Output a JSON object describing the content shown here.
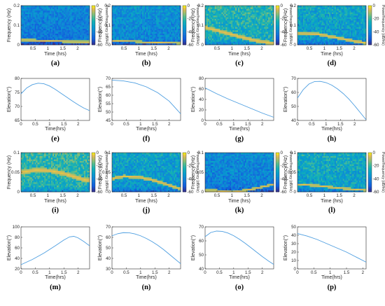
{
  "chart_data": [
    {
      "type": "heatmap",
      "panel_label": "(a)",
      "xlabel": "Time (hrs)",
      "ylabel": "Frequency (Hz)",
      "colorbar_label": "Power/frequency (dB/Hz)",
      "colorbar_ticks": [
        "0",
        "-20",
        "-40",
        "-60"
      ],
      "yticks": [
        "0.2",
        "0.1",
        "0"
      ],
      "xticks": [
        "0.5",
        "1",
        "1.5",
        "2"
      ],
      "clim": [
        -60,
        0
      ],
      "xlim": [
        0.1,
        2.4
      ],
      "ylim": [
        0,
        0.2
      ],
      "track": [
        [
          0.1,
          0.026
        ],
        [
          1.0,
          0.021
        ],
        [
          2.0,
          0.016
        ],
        [
          2.3,
          0.015
        ]
      ],
      "track_width": 0.006,
      "base_db": -42,
      "noise_db": 8
    },
    {
      "type": "heatmap",
      "panel_label": "(b)",
      "xlabel": "Time (hrs)",
      "ylabel": "Frequency (Hz)",
      "colorbar_label": "Power/frequency (dB/Hz)",
      "colorbar_ticks": [
        "0",
        "-20",
        "-40",
        "-60"
      ],
      "yticks": [
        "0.2",
        "0.1",
        "0"
      ],
      "xticks": [
        "0.5",
        "1",
        "1.5",
        "2"
      ],
      "clim": [
        -60,
        0
      ],
      "xlim": [
        0.1,
        2.4
      ],
      "ylim": [
        0,
        0.2
      ],
      "track": [
        [
          0.1,
          0.022
        ],
        [
          0.8,
          0.018
        ],
        [
          1.5,
          0.013
        ],
        [
          2.3,
          0.009
        ]
      ],
      "track_width": 0.005,
      "base_db": -38,
      "noise_db": 9
    },
    {
      "type": "heatmap",
      "panel_label": "(c)",
      "xlabel": "Time (hrs)",
      "ylabel": "Frequency (Hz)",
      "colorbar_label": "Power/frequency (dB/Hz)",
      "colorbar_ticks": [
        "0",
        "-20",
        "-40",
        "-60"
      ],
      "yticks": [
        "0.2",
        "0.1",
        "0"
      ],
      "xticks": [
        "0.5",
        "1",
        "1.5",
        "2"
      ],
      "clim": [
        -60,
        0
      ],
      "xlim": [
        0.1,
        2.4
      ],
      "ylim": [
        0,
        0.2
      ],
      "track": [
        [
          0.1,
          0.09
        ],
        [
          0.6,
          0.07
        ],
        [
          1.2,
          0.045
        ],
        [
          1.8,
          0.022
        ],
        [
          2.3,
          0.01
        ]
      ],
      "track_width": 0.01,
      "base_db": -26,
      "noise_db": 10
    },
    {
      "type": "heatmap",
      "panel_label": "(d)",
      "xlabel": "Time (hrs)",
      "ylabel": "Frequency (Hz)",
      "colorbar_label": "Power/frequency (dB/Hz)",
      "colorbar_ticks": [
        "0",
        "-20",
        "-40",
        "-60"
      ],
      "yticks": [
        "0.2",
        "0.1",
        "0"
      ],
      "xticks": [
        "0.5",
        "1",
        "1.5",
        "2"
      ],
      "clim": [
        -60,
        0
      ],
      "xlim": [
        0.1,
        2.4
      ],
      "ylim": [
        0,
        0.2
      ],
      "track": [
        [
          0.1,
          0.06
        ],
        [
          0.8,
          0.055
        ],
        [
          1.5,
          0.035
        ],
        [
          2.0,
          0.02
        ],
        [
          2.3,
          0.012
        ]
      ],
      "track_width": 0.008,
      "base_db": -32,
      "noise_db": 10
    },
    {
      "type": "line",
      "panel_label": "(e)",
      "xlabel": "Time(hrs)",
      "ylabel": "Elevation(°)",
      "xlim": [
        0,
        2.4
      ],
      "ylim": [
        65,
        80
      ],
      "xticks": [
        "0",
        "0.5",
        "1",
        "1.5",
        "2"
      ],
      "yticks": [
        "65",
        "70",
        "75",
        "80"
      ],
      "x": [
        0,
        0.2,
        0.4,
        0.6,
        0.8,
        1.0,
        1.2,
        1.4,
        1.6,
        1.8,
        2.0,
        2.2,
        2.4
      ],
      "y": [
        74.5,
        76.6,
        77.8,
        78.3,
        78.1,
        77.3,
        76.1,
        74.7,
        73.3,
        71.9,
        70.6,
        69.4,
        68.5
      ]
    },
    {
      "type": "line",
      "panel_label": "(f)",
      "xlabel": "Time(hrs)",
      "ylabel": "Elevation(°)",
      "xlim": [
        0,
        2.4
      ],
      "ylim": [
        45,
        70
      ],
      "xticks": [
        "0",
        "0.5",
        "1",
        "1.5",
        "2"
      ],
      "yticks": [
        "45",
        "50",
        "55",
        "60",
        "65",
        "70"
      ],
      "x": [
        0,
        0.4,
        0.8,
        1.2,
        1.6,
        2.0,
        2.4
      ],
      "y": [
        69,
        68.5,
        67.3,
        65,
        61.5,
        56.5,
        49
      ]
    },
    {
      "type": "line",
      "panel_label": "(g)",
      "xlabel": "Time(hrs)",
      "ylabel": "Elevation(°)",
      "xlim": [
        0,
        2.4
      ],
      "ylim": [
        0,
        80
      ],
      "xticks": [
        "0",
        "0.5",
        "1",
        "1.5",
        "2"
      ],
      "yticks": [
        "0",
        "20",
        "40",
        "60",
        "80"
      ],
      "x": [
        0,
        0.4,
        0.8,
        1.2,
        1.6,
        2.0,
        2.4
      ],
      "y": [
        62,
        51,
        41,
        32,
        23,
        14,
        6
      ]
    },
    {
      "type": "line",
      "panel_label": "(h)",
      "xlabel": "Time(hrs)",
      "ylabel": "Elevation(°)",
      "xlim": [
        0,
        2.4
      ],
      "ylim": [
        40,
        70
      ],
      "xticks": [
        "0",
        "0.5",
        "1",
        "1.5",
        "2"
      ],
      "yticks": [
        "40",
        "50",
        "60",
        "70"
      ],
      "x": [
        0,
        0.2,
        0.4,
        0.6,
        0.8,
        1.0,
        1.2,
        1.4,
        1.6,
        1.8,
        2.0,
        2.2,
        2.4
      ],
      "y": [
        56,
        62,
        66,
        67.8,
        67.9,
        67,
        65.2,
        62.5,
        59.2,
        55.2,
        50.5,
        45.5,
        40.5
      ]
    },
    {
      "type": "heatmap",
      "panel_label": "(i)",
      "xlabel": "Time (hrs)",
      "ylabel": "Frequency (Hz)",
      "colorbar_label": "Power/frequency (dB/Hz)",
      "colorbar_ticks": [
        "0",
        "-20",
        "-40",
        "-60"
      ],
      "yticks": [
        "0.1",
        "0.05",
        "0"
      ],
      "xticks": [
        "0.5",
        "1",
        "1.5",
        "2"
      ],
      "clim": [
        -60,
        0
      ],
      "xlim": [
        0.1,
        2.4
      ],
      "ylim": [
        0,
        0.1
      ],
      "track": [
        [
          0.1,
          0.05
        ],
        [
          0.6,
          0.056
        ],
        [
          1.1,
          0.054
        ],
        [
          1.6,
          0.046
        ],
        [
          2.0,
          0.036
        ],
        [
          2.3,
          0.03
        ]
      ],
      "track_width": 0.006,
      "base_db": -24,
      "noise_db": 10
    },
    {
      "type": "heatmap",
      "panel_label": "(j)",
      "xlabel": "Time (hrs)",
      "ylabel": "Frequency (Hz)",
      "colorbar_label": "Power/frequency (dB/Hz)",
      "colorbar_ticks": [
        "0",
        "-20",
        "-40",
        "-60"
      ],
      "yticks": [
        "0.1",
        "0.05",
        "0"
      ],
      "xticks": [
        "0.5",
        "1",
        "1.5",
        "2"
      ],
      "clim": [
        -60,
        0
      ],
      "xlim": [
        0.1,
        2.4
      ],
      "ylim": [
        0,
        0.1
      ],
      "track": [
        [
          0.1,
          0.034
        ],
        [
          0.5,
          0.04
        ],
        [
          1.0,
          0.038
        ],
        [
          1.5,
          0.03
        ],
        [
          2.0,
          0.018
        ],
        [
          2.3,
          0.01
        ]
      ],
      "track_width": 0.004,
      "base_db": -33,
      "noise_db": 10
    },
    {
      "type": "heatmap",
      "panel_label": "(k)",
      "xlabel": "Time (hrs)",
      "ylabel": "Frequency (Hz)",
      "colorbar_label": "Power/frequency (dB/Hz)",
      "colorbar_ticks": [
        "0",
        "-20",
        "-40",
        "-60"
      ],
      "yticks": [
        "0.1",
        "0.05",
        "0"
      ],
      "xticks": [
        "0.5",
        "1",
        "1.5",
        "2"
      ],
      "clim": [
        -60,
        0
      ],
      "xlim": [
        0.1,
        2.4
      ],
      "ylim": [
        0,
        0.1
      ],
      "track": [
        [
          0.4,
          0.004
        ],
        [
          1.0,
          0.0
        ],
        [
          1.6,
          0.006
        ],
        [
          2.0,
          0.013
        ],
        [
          2.3,
          0.018
        ]
      ],
      "track_width": 0.003,
      "base_db": -40,
      "noise_db": 9
    },
    {
      "type": "heatmap",
      "panel_label": "(l)",
      "xlabel": "Time (hrs)",
      "ylabel": "Frequency (Hz)",
      "colorbar_label": "Power/frequency (dB/Hz)",
      "colorbar_ticks": [
        "0",
        "-20",
        "-40",
        "-60"
      ],
      "yticks": [
        "0.1",
        "0.05",
        "0"
      ],
      "xticks": [
        "0.5",
        "1",
        "1.5",
        "2"
      ],
      "clim": [
        -60,
        0
      ],
      "xlim": [
        0.1,
        2.4
      ],
      "ylim": [
        0,
        0.1
      ],
      "track": [
        [
          0.1,
          0.02
        ],
        [
          0.8,
          0.016
        ],
        [
          1.5,
          0.01
        ],
        [
          2.3,
          0.005
        ]
      ],
      "track_width": 0.003,
      "base_db": -30,
      "noise_db": 10
    },
    {
      "type": "line",
      "panel_label": "(m)",
      "xlabel": "Time(hrs)",
      "ylabel": "Elevation(°)",
      "xlim": [
        0,
        2.4
      ],
      "ylim": [
        20,
        100
      ],
      "xticks": [
        "0",
        "0.5",
        "1",
        "1.5",
        "2"
      ],
      "yticks": [
        "20",
        "40",
        "60",
        "80",
        "100"
      ],
      "x": [
        0,
        0.4,
        0.8,
        1.2,
        1.5,
        1.7,
        1.85,
        2.0,
        2.2,
        2.4
      ],
      "y": [
        28,
        38,
        50,
        64,
        75,
        81,
        82,
        79,
        72,
        64
      ]
    },
    {
      "type": "line",
      "panel_label": "(n)",
      "xlabel": "Time(hrs)",
      "ylabel": "Elevation(°)",
      "xlim": [
        0,
        2.4
      ],
      "ylim": [
        30,
        70
      ],
      "xticks": [
        "0",
        "0.5",
        "1",
        "1.5",
        "2"
      ],
      "yticks": [
        "30",
        "40",
        "50",
        "60",
        "70"
      ],
      "x": [
        0,
        0.2,
        0.4,
        0.6,
        0.8,
        1.0,
        1.2,
        1.4,
        1.6,
        1.8,
        2.0,
        2.2,
        2.4
      ],
      "y": [
        61.5,
        63.5,
        64.5,
        64.4,
        63.3,
        61.5,
        59,
        56,
        52.5,
        48.5,
        44,
        39.5,
        35
      ]
    },
    {
      "type": "line",
      "panel_label": "(o)",
      "xlabel": "Time(hrs)",
      "ylabel": "Elevation(°)",
      "xlim": [
        0,
        2.4
      ],
      "ylim": [
        40,
        70
      ],
      "xticks": [
        "0",
        "0.5",
        "1",
        "1.5",
        "2"
      ],
      "yticks": [
        "40",
        "50",
        "60",
        "70"
      ],
      "x": [
        0,
        0.2,
        0.4,
        0.6,
        0.8,
        1.0,
        1.2,
        1.4,
        1.6,
        1.8,
        2.0,
        2.2,
        2.4
      ],
      "y": [
        63,
        66,
        67,
        66.8,
        65.6,
        63.7,
        61.2,
        58.3,
        55.2,
        52,
        48.8,
        45.9,
        43.2
      ]
    },
    {
      "type": "line",
      "panel_label": "(p)",
      "xlabel": "Time(hrs)",
      "ylabel": "Elevation(°)",
      "xlim": [
        0,
        2.1
      ],
      "ylim": [
        0,
        50
      ],
      "xticks": [
        "0",
        "0.5",
        "1",
        "1.5",
        "2"
      ],
      "yticks": [
        "0",
        "10",
        "20",
        "30",
        "40",
        "50"
      ],
      "x": [
        0,
        0.3,
        0.6,
        0.9,
        1.2,
        1.5,
        1.8,
        2.1
      ],
      "y": [
        42,
        39,
        35,
        30,
        25,
        20,
        14,
        8
      ]
    }
  ],
  "colors": {
    "line": "#4d9ee0",
    "axis": "#262626"
  }
}
